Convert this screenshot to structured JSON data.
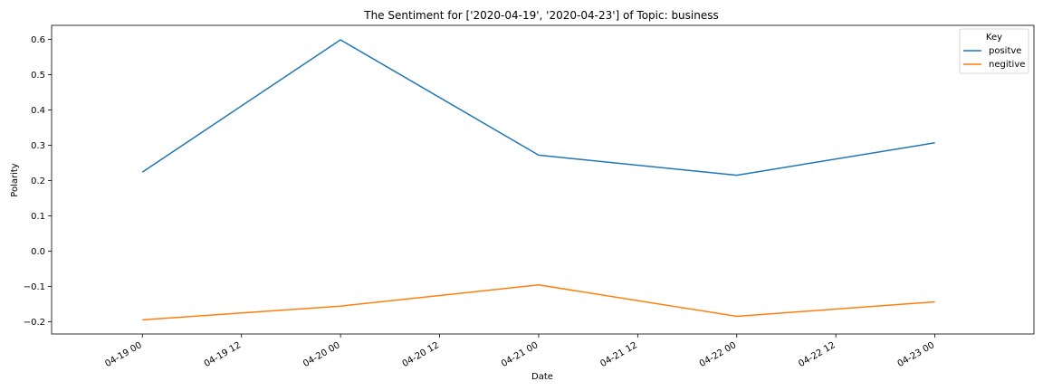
{
  "chart_data": {
    "type": "line",
    "title": "The Sentiment for ['2020-04-19', '2020-04-23'] of Topic: business",
    "xlabel": "Date",
    "ylabel": "Polarity",
    "x": [
      "2020-04-19T00:00",
      "2020-04-20T00:00",
      "2020-04-21T00:00",
      "2020-04-22T00:00",
      "2020-04-23T00:00"
    ],
    "x_ticks": [
      "04-19 00",
      "04-19 12",
      "04-20 00",
      "04-20 12",
      "04-21 00",
      "04-21 12",
      "04-22 00",
      "04-22 12",
      "04-23 00"
    ],
    "y_ticks": [
      "0.6",
      "0.5",
      "0.4",
      "0.3",
      "0.2",
      "0.1",
      "0.0",
      "−0.1",
      "−0.2"
    ],
    "y_tick_values": [
      0.6,
      0.5,
      0.4,
      0.3,
      0.2,
      0.1,
      0.0,
      -0.1,
      -0.2
    ],
    "ylim": [
      -0.235,
      0.64
    ],
    "xlim": [
      "2020-04-18T13:00",
      "2020-04-23T12:00"
    ],
    "grid": false,
    "legend": {
      "title": "Key",
      "placement": "top-right"
    },
    "series": [
      {
        "name": "positve",
        "color": "#1f77b4",
        "values": [
          0.224,
          0.599,
          0.272,
          0.215,
          0.307
        ]
      },
      {
        "name": "negitive",
        "color": "#ff7f0e",
        "values": [
          -0.195,
          -0.156,
          -0.096,
          -0.185,
          -0.144
        ]
      }
    ]
  }
}
